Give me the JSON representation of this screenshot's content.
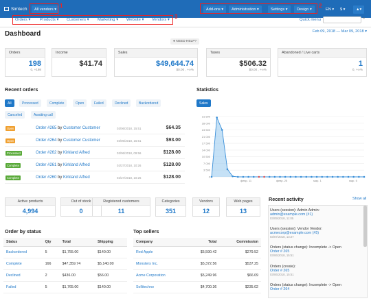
{
  "topbar": {
    "brand": "Simtech",
    "vendor_select": "All vendors",
    "menu": [
      "Add-ons",
      "Administration",
      "Settings",
      "Design"
    ],
    "lang": "EN",
    "currency": "$"
  },
  "menu": {
    "items": [
      "Orders",
      "Products",
      "Customers",
      "Marketing",
      "Website",
      "Vendors"
    ],
    "quick_menu": "Quick menu"
  },
  "annotations": [
    "1",
    "2",
    "3"
  ],
  "page": {
    "title": "Dashboard",
    "date_range": "Feb 09, 2018 — Mar 09, 2018",
    "help": "NEED HELP?"
  },
  "cards": [
    {
      "label": "Orders",
      "value": "198",
      "sub": "0, +198"
    },
    {
      "label": "Income",
      "value": "$41.74",
      "sub": ""
    },
    {
      "label": "Sales",
      "value": "$49,644.74",
      "sub": "$0.00 , +∞%"
    },
    {
      "label": "Taxes",
      "value": "$506.32",
      "sub": "$0.00 , +∞%"
    },
    {
      "label": "Abandoned / Live carts",
      "value": "1",
      "sub": "0, +∞%"
    }
  ],
  "recent_orders": {
    "title": "Recent orders",
    "tabs": [
      "All",
      "Processed",
      "Complete",
      "Open",
      "Failed",
      "Declined",
      "Backordered",
      "Canceled",
      "Awaiting call"
    ],
    "rows": [
      {
        "status": "Open",
        "order": "Order #265",
        "by": "by",
        "customer": "Customer Customer",
        "date": "03/06/2018, 15:51",
        "total": "$64.35",
        "color": "#f0a030"
      },
      {
        "status": "Open",
        "order": "Order #264",
        "by": "by",
        "customer": "Customer Customer",
        "date": "03/06/2018, 15:51",
        "total": "$93.00",
        "color": "#f0a030"
      },
      {
        "status": "Processed",
        "order": "Order #262",
        "by": "by",
        "customer": "Kirkland Alfred",
        "date": "03/06/2018, 09:56",
        "total": "$128.00",
        "color": "#5aaa3a"
      },
      {
        "status": "Complete",
        "order": "Order #261",
        "by": "by",
        "customer": "Kirkland Alfred",
        "date": "02/27/2018, 10:26",
        "total": "$128.00",
        "color": "#5aaa3a"
      },
      {
        "status": "Complete",
        "order": "Order #260",
        "by": "by",
        "customer": "Kirkland Alfred",
        "date": "02/27/2018, 10:26",
        "total": "$128.00",
        "color": "#5aaa3a"
      }
    ]
  },
  "statistics": {
    "title": "Statistics",
    "tab": "Sales",
    "y_ticks": [
      "31 500",
      "28 000",
      "24 500",
      "21 000",
      "17 500",
      "14 000",
      "10 500",
      "7 000",
      "3 500",
      "0"
    ],
    "x_ticks": [
      "февр. 11",
      "февр. 25",
      "мар. 1",
      "мар. 5"
    ]
  },
  "chart_data": {
    "type": "area",
    "series": [
      {
        "values": [
          0,
          31000,
          24500,
          4000,
          300,
          0,
          0,
          0,
          0,
          0,
          0,
          0,
          0,
          0,
          0,
          0,
          0,
          0,
          0,
          0,
          0,
          0,
          0,
          0,
          0,
          0,
          0,
          0,
          0,
          0
        ]
      }
    ],
    "ylim": [
      0,
      31500
    ]
  },
  "stats": [
    {
      "label": "Active products",
      "value": "4,994"
    },
    {
      "label": "Out of stock",
      "value": "0"
    },
    {
      "label": "Registered customers",
      "value": "11"
    },
    {
      "label": "Categories",
      "value": "351"
    },
    {
      "label": "Vendors",
      "value": "12"
    },
    {
      "label": "Web pages",
      "value": "13"
    }
  ],
  "order_status": {
    "title": "Order by status",
    "cols": [
      "Status",
      "Qty",
      "Total",
      "Shipping"
    ],
    "rows": [
      [
        "Backordered",
        "5",
        "$1,755.00",
        "$140.00"
      ],
      [
        "Complete",
        "166",
        "$47,359.74",
        "$5,140.00"
      ],
      [
        "Declined",
        "2",
        "$436.00",
        "$56.00"
      ],
      [
        "Failed",
        "5",
        "$1,765.00",
        "$140.00"
      ]
    ]
  },
  "top_sellers": {
    "title": "Top sellers",
    "cols": [
      "Company",
      "Total",
      "Commission"
    ],
    "rows": [
      [
        "Red Apple",
        "$5,590.42",
        "$279.52"
      ],
      [
        "Monsters Inc.",
        "$5,372.56",
        "$537.25"
      ],
      [
        "Acme Corporation",
        "$5,249.96",
        "$66.09"
      ],
      [
        "Sollitechno",
        "$4,700.36",
        "$235.02"
      ]
    ]
  },
  "recent_activity": {
    "title": "Recent activity",
    "show_all": "Show all",
    "items": [
      {
        "text": "Users (session): Admin Admin:",
        "link": "admin@example.com (#1)",
        "date": "03/09/2018, 11:05"
      },
      {
        "text": "Users (session): Vendor Vendor:",
        "link": "acmecorp@example.com (#5)",
        "date": "03/07/2018, 13:27"
      },
      {
        "text": "Orders (status change): Incomplete -> Open",
        "link": "Order # 265",
        "date": "03/06/2018, 15:51"
      },
      {
        "text": "Orders (create):",
        "link": "Order # 265",
        "date": "03/06/2018, 15:51"
      },
      {
        "text": "Orders (status change): Incomplete -> Open",
        "link": "Order # 264",
        "date": ""
      }
    ]
  }
}
